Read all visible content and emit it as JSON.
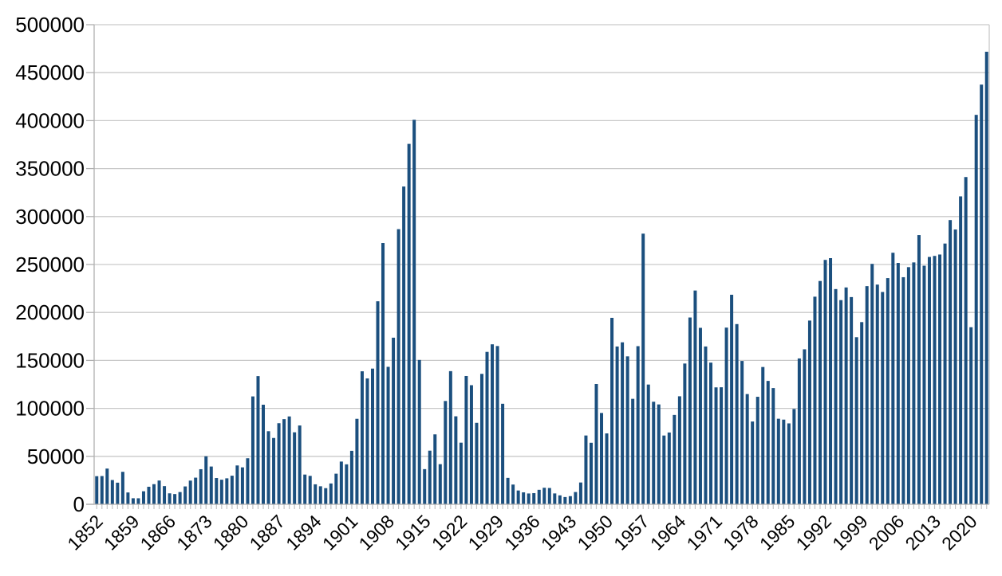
{
  "chart_data": {
    "type": "bar",
    "title": "",
    "xlabel": "",
    "ylabel": "",
    "legend": "none",
    "grid": true,
    "ylim": [
      0,
      500000
    ],
    "y_ticks": [
      0,
      50000,
      100000,
      150000,
      200000,
      250000,
      300000,
      350000,
      400000,
      450000,
      500000
    ],
    "y_tick_labels": [
      "0",
      "50000",
      "100000",
      "150000",
      "200000",
      "250000",
      "300000",
      "350000",
      "400000",
      "450000",
      "500000"
    ],
    "x_tick_labels": [
      "1852",
      "1859",
      "1866",
      "1873",
      "1880",
      "1887",
      "1894",
      "1901",
      "1908",
      "1915",
      "1922",
      "1929",
      "1936",
      "1943",
      "1950",
      "1957",
      "1964",
      "1971",
      "1978",
      "1985",
      "1992",
      "1999",
      "2006",
      "2013",
      "2020"
    ],
    "x_tick_interval": 7,
    "years": [
      1852,
      1853,
      1854,
      1855,
      1856,
      1857,
      1858,
      1859,
      1860,
      1861,
      1862,
      1863,
      1864,
      1865,
      1866,
      1867,
      1868,
      1869,
      1870,
      1871,
      1872,
      1873,
      1874,
      1875,
      1876,
      1877,
      1878,
      1879,
      1880,
      1881,
      1882,
      1883,
      1884,
      1885,
      1886,
      1887,
      1888,
      1889,
      1890,
      1891,
      1892,
      1893,
      1894,
      1895,
      1896,
      1897,
      1898,
      1899,
      1900,
      1901,
      1902,
      1903,
      1904,
      1905,
      1906,
      1907,
      1908,
      1909,
      1910,
      1911,
      1912,
      1913,
      1914,
      1915,
      1916,
      1917,
      1918,
      1919,
      1920,
      1921,
      1922,
      1923,
      1924,
      1925,
      1926,
      1927,
      1928,
      1929,
      1930,
      1931,
      1932,
      1933,
      1934,
      1935,
      1936,
      1937,
      1938,
      1939,
      1940,
      1941,
      1942,
      1943,
      1944,
      1945,
      1946,
      1947,
      1948,
      1949,
      1950,
      1951,
      1952,
      1953,
      1954,
      1955,
      1956,
      1957,
      1958,
      1959,
      1960,
      1961,
      1962,
      1963,
      1964,
      1965,
      1966,
      1967,
      1968,
      1969,
      1970,
      1971,
      1972,
      1973,
      1974,
      1975,
      1976,
      1977,
      1978,
      1979,
      1980,
      1981,
      1982,
      1983,
      1984,
      1985,
      1986,
      1987,
      1988,
      1989,
      1990,
      1991,
      1992,
      1993,
      1994,
      1995,
      1996,
      1997,
      1998,
      1999,
      2000,
      2001,
      2002,
      2003,
      2004,
      2005,
      2006,
      2007,
      2008,
      2009,
      2010,
      2011,
      2012,
      2013,
      2014,
      2015,
      2016,
      2017,
      2018,
      2019,
      2020,
      2021,
      2022,
      2023
    ],
    "values": [
      29307,
      29464,
      37263,
      25296,
      22544,
      33854,
      12339,
      6300,
      6276,
      13589,
      18294,
      21000,
      24779,
      18958,
      11427,
      10666,
      12765,
      18630,
      24706,
      27773,
      36578,
      50050,
      39373,
      27382,
      25633,
      27082,
      29807,
      40492,
      38505,
      47991,
      112458,
      133624,
      103824,
      76169,
      69152,
      84526,
      88766,
      91600,
      75067,
      82165,
      30996,
      29633,
      20829,
      18790,
      16835,
      21716,
      31900,
      44543,
      41681,
      55747,
      89102,
      138660,
      131252,
      141465,
      211653,
      272409,
      143326,
      173694,
      286839,
      331288,
      375756,
      400870,
      150484,
      36665,
      55914,
      72910,
      41845,
      107698,
      138824,
      91728,
      64224,
      133729,
      124164,
      84907,
      135982,
      158886,
      166783,
      164993,
      104806,
      27530,
      20591,
      14382,
      12476,
      11277,
      11643,
      15101,
      17244,
      16994,
      11324,
      9329,
      7576,
      8504,
      12801,
      22722,
      71719,
      64127,
      125414,
      95217,
      73912,
      194391,
      164498,
      168868,
      154227,
      109946,
      164857,
      282164,
      124851,
      106928,
      104111,
      71698,
      74856,
      93151,
      112606,
      146758,
      194743,
      222876,
      183974,
      164531,
      147713,
      121900,
      122006,
      184200,
      218465,
      187881,
      149429,
      114914,
      86313,
      112093,
      143138,
      128642,
      121179,
      89187,
      88272,
      84347,
      99355,
      152077,
      161585,
      191555,
      216450,
      232808,
      254790,
      256641,
      224385,
      212865,
      226071,
      216036,
      174195,
      189951,
      227455,
      250638,
      229048,
      221349,
      235823,
      262242,
      251640,
      236753,
      247246,
      252172,
      280687,
      248748,
      257887,
      258953,
      260404,
      271845,
      296346,
      286479,
      321035,
      341180,
      184606,
      405999,
      437539,
      471808
    ],
    "colors": {
      "bar": "#1b4f7e",
      "gridline": "#c9c9c9",
      "axis": "#b0b0b0",
      "minor_tick": "#c3c3c3",
      "label_text": "#000000",
      "background": "#ffffff"
    }
  }
}
